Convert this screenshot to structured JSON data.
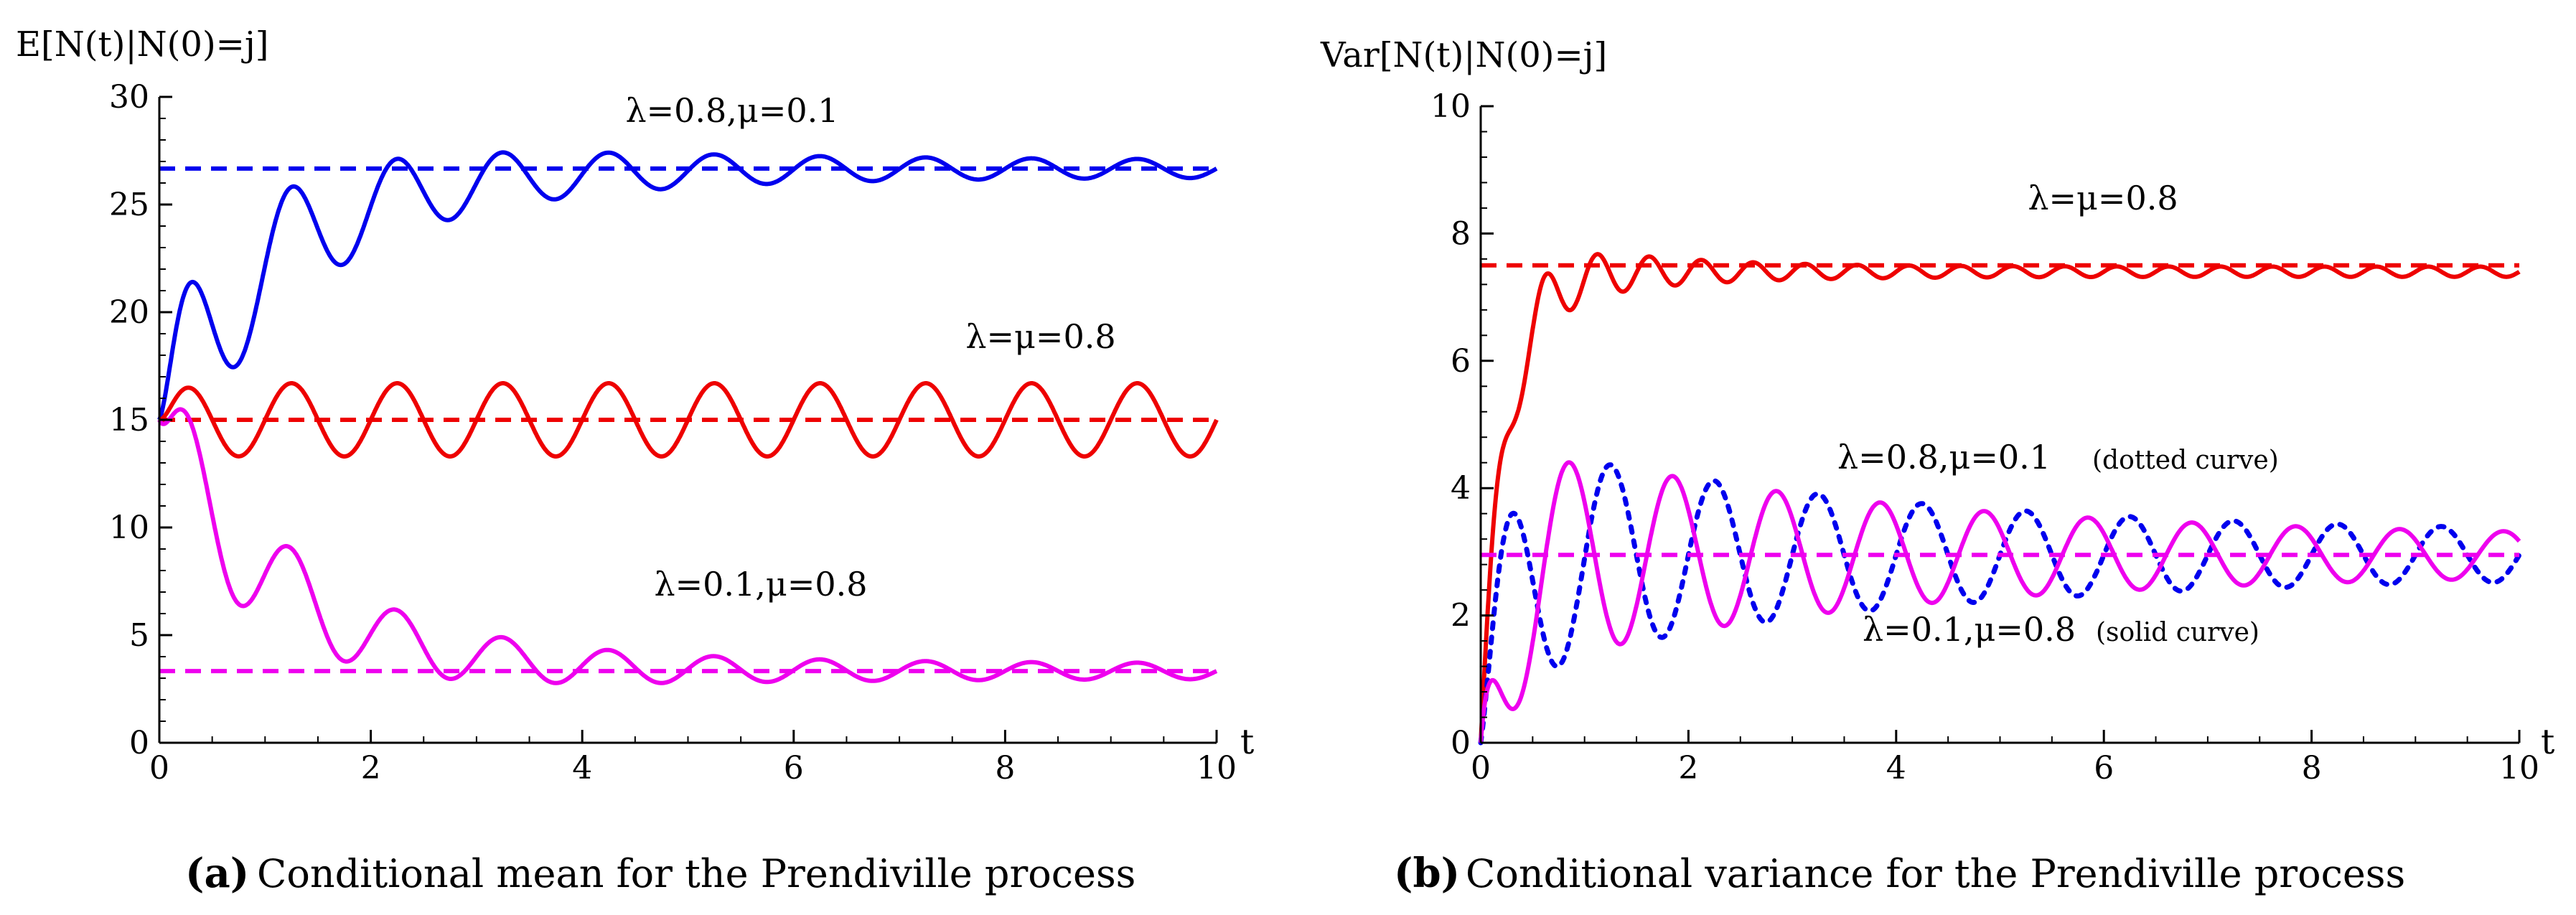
{
  "chart_data": [
    {
      "type": "line",
      "panel_tag": "a",
      "caption_tag": "(a)",
      "caption": "Conditional mean for the Prendiville process",
      "ylabel": "E[N(t)|N(0)=j]",
      "xlabel": "t",
      "xlim": [
        0,
        10
      ],
      "ylim": [
        0,
        30
      ],
      "xticks": [
        0,
        2,
        4,
        6,
        8,
        10
      ],
      "yticks": [
        0,
        5,
        10,
        15,
        20,
        25,
        30
      ],
      "grid": false,
      "series": [
        {
          "name": "λ=0.8,μ=0.1",
          "label": "λ=0.8,μ=0.1",
          "color": "#0000ee",
          "style": "solid",
          "start": 15,
          "asymptote": 26.67,
          "rate": 0.95,
          "amplitude": 4.6,
          "damping": 0.48,
          "period": 1.0,
          "oscillation_floor": 0.4
        },
        {
          "name": "λ=0.8,μ=0.1 limit",
          "color": "#0000ee",
          "style": "dashed",
          "constant": 26.67
        },
        {
          "name": "λ=μ=0.8",
          "label": "λ=μ=0.8",
          "color": "#ee0000",
          "style": "solid",
          "start": 15,
          "asymptote": 15,
          "amplitude": 1.7,
          "period": 1.0,
          "oscillation_floor": 1.7
        },
        {
          "name": "λ=μ=0.8 limit",
          "color": "#ee0000",
          "style": "dashed",
          "constant": 15
        },
        {
          "name": "λ=0.1,μ=0.8",
          "label": "λ=0.1,μ=0.8",
          "color": "#ee00ee",
          "style": "solid",
          "start": 15,
          "asymptote": 3.33,
          "rate": 0.95,
          "amplitude": 3.6,
          "damping": 0.48,
          "period": 1.0,
          "oscillation_floor": 0.35
        },
        {
          "name": "λ=0.1,μ=0.8 limit",
          "color": "#ee00ee",
          "style": "dashed",
          "constant": 3.33
        }
      ]
    },
    {
      "type": "line",
      "panel_tag": "b",
      "caption_tag": "(b)",
      "caption": "Conditional variance for the Prendiville process",
      "ylabel": "Var[N(t)|N(0)=j]",
      "xlabel": "t",
      "xlim": [
        0,
        10
      ],
      "ylim": [
        0,
        10
      ],
      "xticks": [
        0,
        2,
        4,
        6,
        8,
        10
      ],
      "yticks": [
        0,
        2,
        4,
        6,
        8,
        10
      ],
      "grid": false,
      "series": [
        {
          "name": "λ=μ=0.8",
          "label": "λ=μ=0.8",
          "color": "#ee0000",
          "style": "solid",
          "start": 0,
          "asymptote": 7.4,
          "rate": 4.2,
          "amplitude": 0.8,
          "damping": 0.9,
          "period": 0.5,
          "oscillation_floor": 0.08
        },
        {
          "name": "λ=μ=0.8 limit",
          "color": "#ee0000",
          "style": "dashed",
          "constant": 7.5
        },
        {
          "name": "λ=0.8,μ=0.1",
          "label": "λ=0.8,μ=0.1",
          "note": "(dotted curve)",
          "color": "#0000ee",
          "style": "dotted",
          "start": 0,
          "asymptote": 2.95,
          "rate": 4.0,
          "amplitude": 1.9,
          "damping": 0.28,
          "period": 1.0,
          "phase": 1.0,
          "oscillation_floor": 0.33
        },
        {
          "name": "λ=0.1,μ=0.8",
          "label": "λ=0.1,μ=0.8",
          "note": "(solid curve)",
          "color": "#ee00ee",
          "style": "solid",
          "start": 0,
          "asymptote": 2.95,
          "rate": 4.0,
          "amplitude": 1.9,
          "damping": 0.28,
          "period": 1.0,
          "phase": 1.4,
          "oscillation_floor": 0.27
        },
        {
          "name": "variance limit",
          "color": "#ee00ee",
          "style": "dashed",
          "constant": 2.95
        }
      ]
    }
  ]
}
